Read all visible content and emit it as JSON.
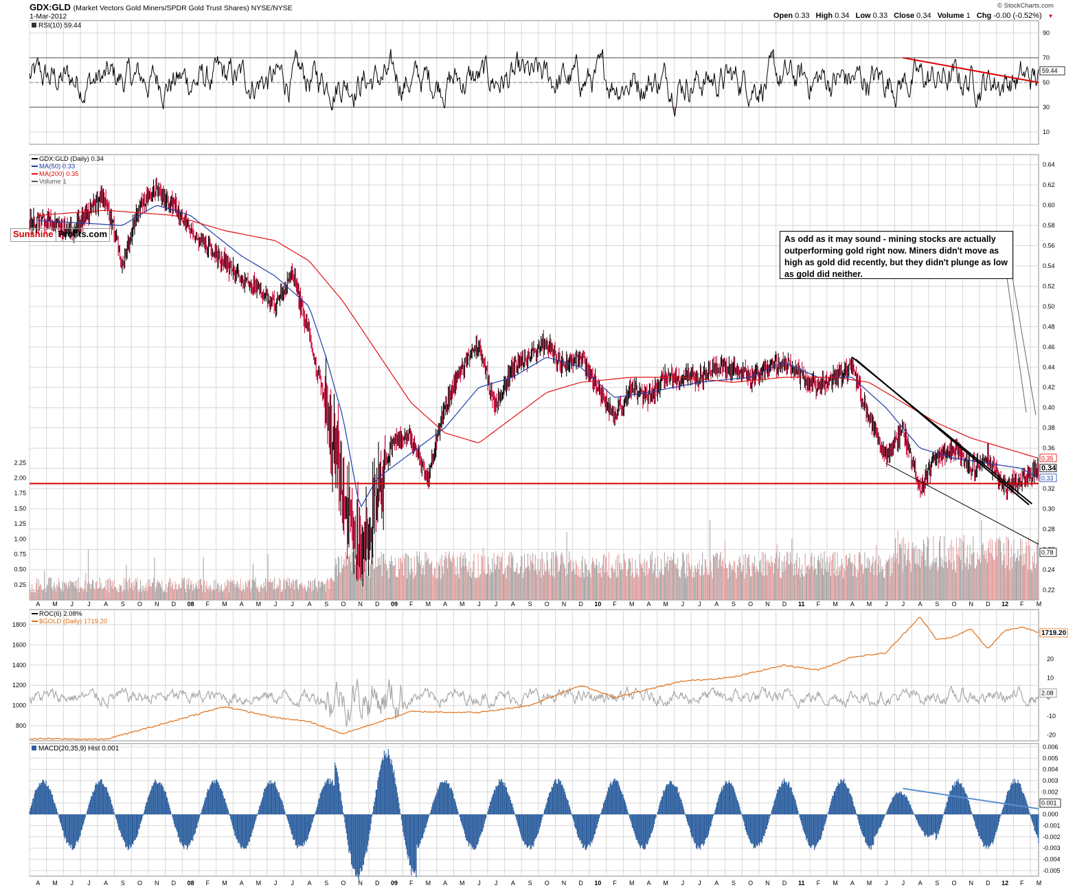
{
  "header": {
    "symbol": "GDX:GLD",
    "description": "(Market Vectors Gold Miners/SPDR Gold Trust Shares) NYSE/NYSE",
    "date": "1-Mar-2012",
    "watermark": "© StockCharts.com",
    "quote": [
      {
        "label": "Open",
        "value": "0.33"
      },
      {
        "label": "High",
        "value": "0.34"
      },
      {
        "label": "Low",
        "value": "0.33"
      },
      {
        "label": "Close",
        "value": "0.34"
      },
      {
        "label": "Volume",
        "value": "1"
      },
      {
        "label": "Chg",
        "value": "-0.00 (-0.52%)"
      }
    ]
  },
  "logo": {
    "part1": "Sunshine",
    "part2": "Profits.com"
  },
  "annotation": "As odd as it may sound - mining stocks are actually outperforming gold right now. Miners didn't move as high as gold did recently, but they didn't plunge as low as gold did neither.",
  "colors": {
    "price_up": "#000000",
    "price_down": "#cc0033",
    "ma50": "#1f3ea8",
    "ma200": "#e01010",
    "support_line": "#d00000",
    "rsi": "#000000",
    "rsi_fill": "#9b7b7b",
    "roc": "#a8a8a8",
    "gold": "#e06e14",
    "macd_hist": "#2d5f9e",
    "macd_trend": "#5a8fd0",
    "grid": "#d6d6d6",
    "volume_up": "#a0a0a0",
    "volume_down": "#e29a9a"
  },
  "x_axis": {
    "ticks": [
      "A",
      "M",
      "J",
      "J",
      "A",
      "S",
      "O",
      "N",
      "D",
      "08",
      "F",
      "M",
      "A",
      "M",
      "J",
      "J",
      "A",
      "S",
      "O",
      "N",
      "D",
      "09",
      "F",
      "M",
      "A",
      "M",
      "J",
      "J",
      "A",
      "S",
      "O",
      "N",
      "D",
      "10",
      "F",
      "M",
      "A",
      "M",
      "J",
      "J",
      "A",
      "S",
      "O",
      "N",
      "D",
      "11",
      "F",
      "M",
      "A",
      "M",
      "J",
      "J",
      "A",
      "S",
      "O",
      "N",
      "D",
      "12",
      "F",
      "M"
    ],
    "bold_ticks": [
      "08",
      "09",
      "10",
      "11",
      "12"
    ]
  },
  "chart_data": [
    {
      "panel": "rsi",
      "type": "line",
      "legend": "RSI(10) 59.44",
      "last_value": "59.44",
      "ylim": [
        0,
        100
      ],
      "y_ticks": [
        10,
        30,
        50,
        70,
        90
      ],
      "reference_lines": [
        30,
        50,
        70
      ],
      "trendline": {
        "color": "red",
        "from": {
          "x": "2011-07",
          "y": 70
        },
        "to": {
          "x": "2012-03",
          "y": 50
        }
      }
    },
    {
      "panel": "price",
      "type": "line",
      "legend": [
        "GDX:GLD (Daily) 0.34",
        "MA(50) 0.33",
        "MA(200) 0.35",
        "Volume 1"
      ],
      "y_ticks": [
        0.22,
        0.24,
        0.26,
        0.28,
        0.3,
        0.32,
        0.34,
        0.36,
        0.38,
        0.4,
        0.42,
        0.44,
        0.46,
        0.48,
        0.5,
        0.52,
        0.54,
        0.56,
        0.58,
        0.6,
        0.62,
        0.64
      ],
      "ylim": [
        0.21,
        0.65
      ],
      "last_labels": {
        "ma200": "0.35",
        "close": "0.34",
        "ma50": "0.33"
      },
      "series": [
        {
          "name": "GDX:GLD (Daily)",
          "x": [
            "2007-04",
            "2007-06",
            "2007-08",
            "2007-09",
            "2007-10",
            "2007-11",
            "2007-12",
            "2008-01",
            "2008-02",
            "2008-03",
            "2008-04",
            "2008-05",
            "2008-06",
            "2008-07",
            "2008-08",
            "2008-09",
            "2008-10",
            "2008-11",
            "2008-12",
            "2009-01",
            "2009-02",
            "2009-03",
            "2009-04",
            "2009-05",
            "2009-06",
            "2009-07",
            "2009-08",
            "2009-09",
            "2009-10",
            "2009-11",
            "2009-12",
            "2010-01",
            "2010-02",
            "2010-03",
            "2010-04",
            "2010-05",
            "2010-06",
            "2010-07",
            "2010-08",
            "2010-09",
            "2010-10",
            "2010-11",
            "2010-12",
            "2011-01",
            "2011-02",
            "2011-03",
            "2011-04",
            "2011-05",
            "2011-06",
            "2011-07",
            "2011-08",
            "2011-09",
            "2011-10",
            "2011-11",
            "2011-12",
            "2012-01",
            "2012-02",
            "2012-03"
          ],
          "values": [
            0.585,
            0.575,
            0.61,
            0.54,
            0.6,
            0.615,
            0.6,
            0.575,
            0.56,
            0.545,
            0.525,
            0.52,
            0.5,
            0.535,
            0.47,
            0.4,
            0.32,
            0.26,
            0.31,
            0.37,
            0.37,
            0.33,
            0.4,
            0.44,
            0.46,
            0.4,
            0.44,
            0.45,
            0.465,
            0.44,
            0.45,
            0.42,
            0.39,
            0.42,
            0.41,
            0.43,
            0.43,
            0.43,
            0.44,
            0.44,
            0.43,
            0.44,
            0.445,
            0.43,
            0.42,
            0.43,
            0.44,
            0.39,
            0.35,
            0.38,
            0.32,
            0.35,
            0.36,
            0.34,
            0.35,
            0.32,
            0.33,
            0.34
          ]
        },
        {
          "name": "MA(50)",
          "x": [
            "2007-04",
            "2007-09",
            "2007-11",
            "2008-01",
            "2008-04",
            "2008-06",
            "2008-08",
            "2008-09",
            "2008-10",
            "2008-11",
            "2008-12",
            "2009-02",
            "2009-04",
            "2009-06",
            "2009-08",
            "2009-10",
            "2009-12",
            "2010-02",
            "2010-04",
            "2010-07",
            "2010-10",
            "2010-12",
            "2011-02",
            "2011-04",
            "2011-06",
            "2011-08",
            "2011-10",
            "2011-12",
            "2012-02",
            "2012-03"
          ],
          "values": [
            0.585,
            0.58,
            0.6,
            0.59,
            0.55,
            0.53,
            0.5,
            0.45,
            0.39,
            0.3,
            0.33,
            0.355,
            0.38,
            0.42,
            0.43,
            0.45,
            0.44,
            0.41,
            0.415,
            0.425,
            0.43,
            0.445,
            0.43,
            0.43,
            0.4,
            0.36,
            0.35,
            0.345,
            0.34,
            0.33
          ]
        },
        {
          "name": "MA(200)",
          "x": [
            "2007-04",
            "2007-08",
            "2007-12",
            "2008-03",
            "2008-06",
            "2008-08",
            "2008-10",
            "2008-12",
            "2009-02",
            "2009-04",
            "2009-06",
            "2009-08",
            "2009-10",
            "2009-12",
            "2010-03",
            "2010-06",
            "2010-09",
            "2010-12",
            "2011-03",
            "2011-05",
            "2011-07",
            "2011-09",
            "2011-11",
            "2012-01",
            "2012-03"
          ],
          "values": [
            0.59,
            0.595,
            0.59,
            0.575,
            0.565,
            0.545,
            0.505,
            0.455,
            0.405,
            0.375,
            0.365,
            0.39,
            0.415,
            0.425,
            0.43,
            0.43,
            0.425,
            0.43,
            0.43,
            0.425,
            0.405,
            0.385,
            0.37,
            0.36,
            0.35
          ]
        }
      ],
      "support_line": 0.325,
      "channel": {
        "upper": {
          "from": {
            "x": "2011-04",
            "y": 0.45
          },
          "to": {
            "x": "2012-02",
            "y": 0.305
          }
        },
        "lower": {
          "from": {
            "x": "2011-06",
            "y": 0.345
          },
          "to": {
            "x": "2012-03",
            "y": 0.265
          }
        }
      }
    },
    {
      "panel": "volume",
      "type": "bar",
      "y_ticks": [
        0.25,
        0.5,
        0.75,
        1.0,
        1.25,
        1.5,
        1.75,
        2.0,
        2.25
      ],
      "last_value": "0.78"
    },
    {
      "panel": "roc_gold",
      "type": "line",
      "legend": [
        "ROC(6) 2.08%",
        "$GOLD (Daily) 1719.20"
      ],
      "left_ticks": [
        800,
        1000,
        1200,
        1400,
        1600,
        1800
      ],
      "right_ticks": [
        -20,
        -10,
        0,
        10,
        20
      ],
      "last_labels": {
        "gold": "1719.20",
        "roc": "2.08"
      },
      "series": [
        {
          "name": "$GOLD (Daily)",
          "x": [
            "2007-04",
            "2007-08",
            "2007-11",
            "2008-03",
            "2008-06",
            "2008-08",
            "2008-10",
            "2009-02",
            "2009-06",
            "2009-09",
            "2009-12",
            "2010-02",
            "2010-06",
            "2010-09",
            "2010-12",
            "2011-02",
            "2011-04",
            "2011-06",
            "2011-08",
            "2011-09",
            "2011-10",
            "2011-11",
            "2011-12",
            "2012-01",
            "2012-02",
            "2012-03"
          ],
          "values": [
            670,
            665,
            800,
            990,
            880,
            840,
            720,
            940,
            930,
            1000,
            1200,
            1080,
            1240,
            1280,
            1400,
            1350,
            1480,
            1520,
            1880,
            1650,
            1680,
            1760,
            1560,
            1740,
            1780,
            1719.2
          ]
        }
      ]
    },
    {
      "panel": "macd",
      "type": "bar",
      "legend": "MACD(20,35,9) Hist 0.001",
      "last_value": "0.001",
      "y_ticks": [
        -0.005,
        -0.004,
        -0.003,
        -0.002,
        -0.001,
        0.0,
        0.001,
        0.002,
        0.003,
        0.004,
        0.005,
        0.006
      ],
      "ylim": [
        -0.0055,
        0.0063
      ],
      "trendline": {
        "from": {
          "x": "2011-07",
          "y": 0.0023
        },
        "to": {
          "x": "2012-03",
          "y": 0.0005
        }
      }
    }
  ]
}
